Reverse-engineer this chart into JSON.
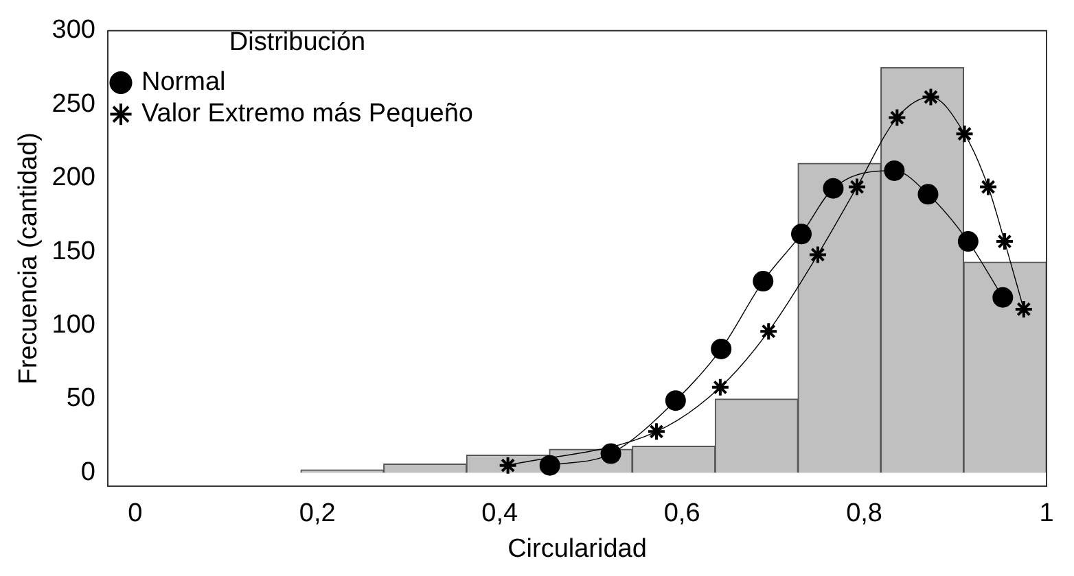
{
  "chart_data": {
    "type": "histogram",
    "xlabel": "Circularidad",
    "ylabel": "Frecuencia (cantidad)",
    "legend_title": "Distribución",
    "legend": "top left",
    "grid": false,
    "xlim": [
      -0.03,
      1
    ],
    "xticks": [
      0,
      {
        "value": 0.2,
        "label": "0,2"
      },
      {
        "value": 0.4,
        "label": "0,4"
      },
      {
        "value": 0.6,
        "label": "0,6"
      },
      {
        "value": 0.8,
        "label": "0,8"
      },
      1
    ],
    "ylim": [
      -9,
      300
    ],
    "yticks": [
      0,
      50,
      100,
      150,
      200,
      250,
      300
    ],
    "series": [
      {
        "color": "#c0c0c0",
        "bins": [
          0.1818,
          0.2727,
          0.3636,
          0.4545,
          0.5455,
          0.6364,
          0.7273,
          0.8182,
          0.9091,
          1.0
        ],
        "values": [
          2,
          6,
          12,
          16,
          18,
          50,
          210,
          275,
          143
        ]
      },
      {
        "type": "line",
        "name": "Normal",
        "color": "#000000",
        "marker": "circle",
        "x": [
          0.455,
          0.522,
          0.593,
          0.643,
          0.689,
          0.731,
          0.766,
          0.833,
          0.87,
          0.914,
          0.952
        ],
        "values": [
          5,
          13,
          49,
          84,
          130,
          162,
          193,
          205,
          189,
          157,
          119
        ]
      },
      {
        "type": "line",
        "name": "Valor Extremo más Pequeño",
        "color": "#000000",
        "marker": "cross",
        "x": [
          0.409,
          0.572,
          0.642,
          0.695,
          0.749,
          0.792,
          0.836,
          0.873,
          0.91,
          0.936,
          0.954,
          0.975
        ],
        "values": [
          5,
          28,
          58,
          96,
          148,
          194,
          241,
          255,
          230,
          194,
          157,
          111
        ]
      }
    ]
  }
}
